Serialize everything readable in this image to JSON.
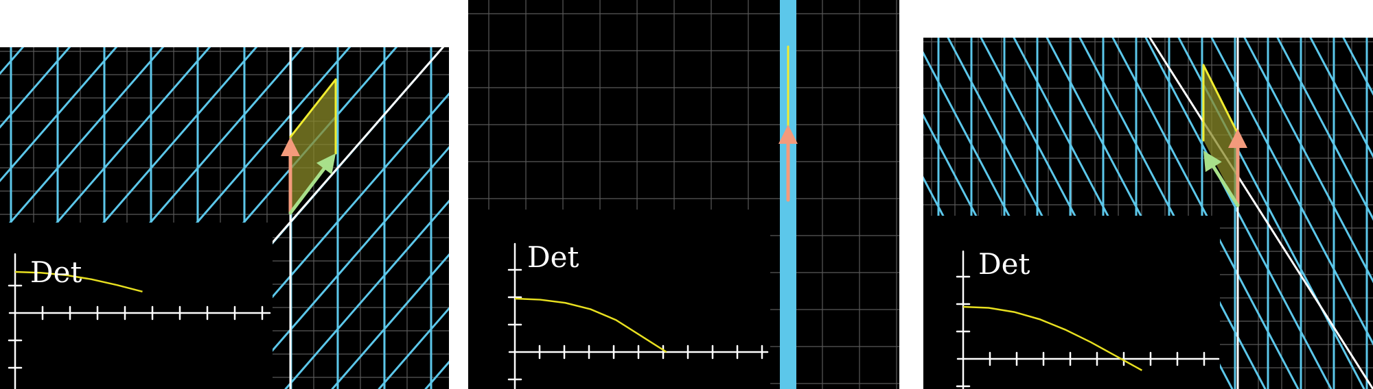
{
  "panels": [
    {
      "det_label": "Det",
      "curve_values": [
        1.0,
        0.98,
        0.92,
        0.82,
        0.68,
        0.52
      ],
      "graph_xmax": 10
    },
    {
      "det_label": "Det",
      "curve_values": [
        1.0,
        0.98,
        0.92,
        0.8,
        0.6,
        0.3,
        0.0
      ],
      "graph_xmax": 10
    },
    {
      "det_label": "Det",
      "curve_values": [
        1.0,
        0.98,
        0.9,
        0.76,
        0.56,
        0.32,
        0.05,
        -0.22
      ],
      "graph_xmax": 10
    }
  ],
  "colors": {
    "grid": "#5a5a5a",
    "transformed_lines": "#5cc7ea",
    "line_of_vectors": "#ffffff",
    "det_curve": "#e8e020",
    "vector_i": "#f49a7c",
    "vector_j": "#a8e08a",
    "area": "#8a8a28",
    "area_edge": "#f0ec30"
  }
}
